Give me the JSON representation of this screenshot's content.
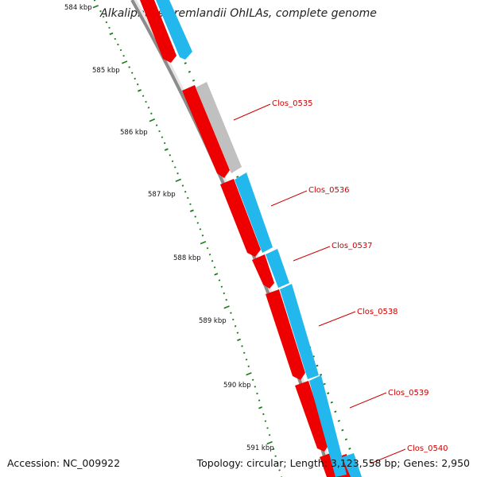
{
  "title": "Alkaliphilus oremlandii OhILAs, complete genome",
  "accession_text": "Accession: NC_009922",
  "summary_text": "Topology: circular; Length: 3,123,558 bp; Genes: 2,950",
  "colors": {
    "backbone": "#8c8c8c",
    "forward_gene": "#22b8ee",
    "reverse_gene": "#ee0000",
    "pseudo_gene": "#c0c0c0",
    "tick": "#1a7a1a",
    "label": "#cc0000"
  },
  "scale_labels": [
    "584 kbp",
    "585 kbp",
    "586 kbp",
    "587 kbp",
    "588 kbp",
    "589 kbp",
    "590 kbp",
    "591 kbp"
  ],
  "gene_labels": [
    "Clos_0535",
    "Clos_0536",
    "Clos_0537",
    "Clos_0538",
    "Clos_0539",
    "Clos_0540"
  ]
}
